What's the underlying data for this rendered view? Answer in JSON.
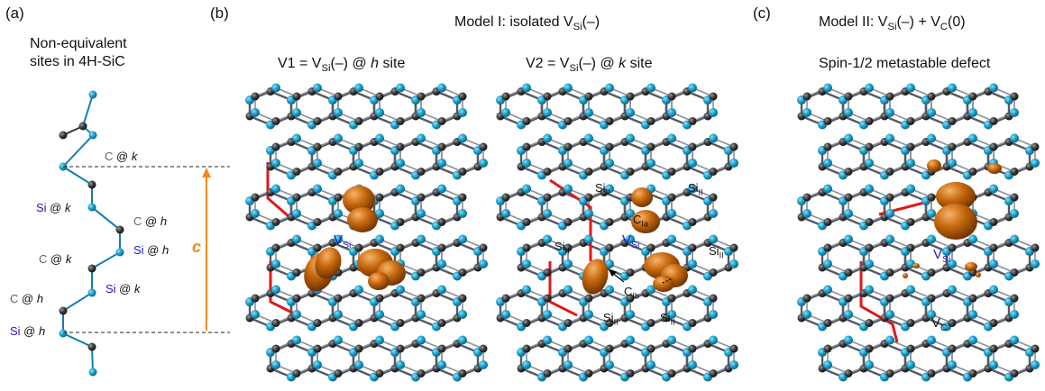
{
  "panels": {
    "a": {
      "label": "(a)",
      "title_line1": "Non-equivalent",
      "title_line2": "sites in 4H-SiC",
      "c_axis_label": "c",
      "sites": [
        {
          "atom": "C",
          "sep": "@",
          "site": "k"
        },
        {
          "atom": "Si",
          "sep": "@",
          "site": "k"
        },
        {
          "atom": "C",
          "sep": "@",
          "site": "h"
        },
        {
          "atom": "Si",
          "sep": "@",
          "site": "h"
        },
        {
          "atom": "C",
          "sep": "@",
          "site": "k"
        },
        {
          "atom": "Si",
          "sep": "@",
          "site": "k"
        },
        {
          "atom": "C",
          "sep": "@",
          "site": "h"
        },
        {
          "atom": "Si",
          "sep": "@",
          "site": "h"
        }
      ]
    },
    "b": {
      "label": "(b)",
      "title_pre": "Model I: isolated V",
      "title_sub": "Si",
      "title_post": "(–)",
      "v1": {
        "pre": "V1 = V",
        "sub": "Si",
        "mid": "(–)  @ ",
        "site": "h",
        "post": " site"
      },
      "v2": {
        "pre": "V2 = V",
        "sub": "Si",
        "mid": "(–)  @ ",
        "site": "k",
        "post": " site"
      },
      "vsi": {
        "main": "V",
        "sub": "Si"
      },
      "si_ii": {
        "main": "Si",
        "sub": "II"
      },
      "c_ia": {
        "main": "C",
        "sub": "Ia"
      },
      "c_ib": {
        "main": "C",
        "sub": "Ib"
      }
    },
    "c": {
      "label": "(c)",
      "title_pre": "Model II: V",
      "title_sub1": "Si",
      "title_mid": "(–)  +  V",
      "title_sub2": "C",
      "title_post": "(0)",
      "subtitle": "Spin-1/2  metastable defect",
      "vsi": {
        "main": "V",
        "sub": "Si"
      },
      "vc": {
        "main": "V",
        "sub": "C"
      }
    }
  },
  "colors": {
    "si_atom": "#1aa0cc",
    "c_atom": "#3a3a3a",
    "bond": "#555a66",
    "highlight_bond": "#e01818",
    "spin_density": "#c86a10",
    "c_axis": "#f08a1e",
    "vsi_label": "#1a1acc"
  }
}
